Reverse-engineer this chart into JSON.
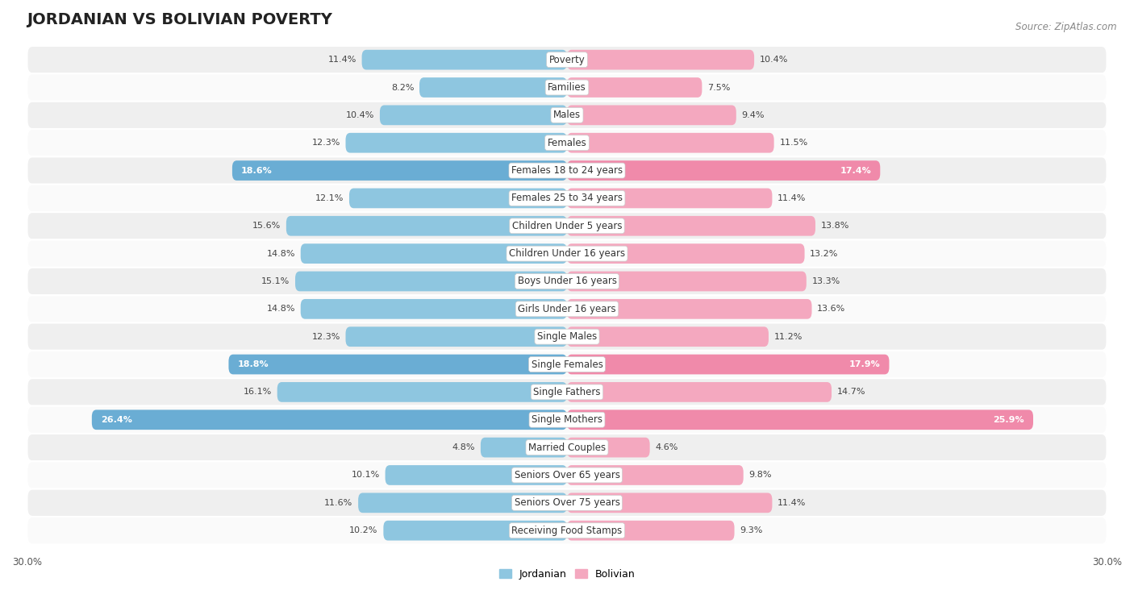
{
  "title": "JORDANIAN VS BOLIVIAN POVERTY",
  "source": "Source: ZipAtlas.com",
  "categories": [
    "Poverty",
    "Families",
    "Males",
    "Females",
    "Females 18 to 24 years",
    "Females 25 to 34 years",
    "Children Under 5 years",
    "Children Under 16 years",
    "Boys Under 16 years",
    "Girls Under 16 years",
    "Single Males",
    "Single Females",
    "Single Fathers",
    "Single Mothers",
    "Married Couples",
    "Seniors Over 65 years",
    "Seniors Over 75 years",
    "Receiving Food Stamps"
  ],
  "jordanian": [
    11.4,
    8.2,
    10.4,
    12.3,
    18.6,
    12.1,
    15.6,
    14.8,
    15.1,
    14.8,
    12.3,
    18.8,
    16.1,
    26.4,
    4.8,
    10.1,
    11.6,
    10.2
  ],
  "bolivian": [
    10.4,
    7.5,
    9.4,
    11.5,
    17.4,
    11.4,
    13.8,
    13.2,
    13.3,
    13.6,
    11.2,
    17.9,
    14.7,
    25.9,
    4.6,
    9.8,
    11.4,
    9.3
  ],
  "jordanian_color": "#8ec6e0",
  "bolivian_color": "#f4a8bf",
  "jordanian_highlight_color": "#6aadd4",
  "bolivian_highlight_color": "#f08aaa",
  "highlight_indices": [
    4,
    11,
    13
  ],
  "xlim": 30.0,
  "bar_height": 0.72,
  "row_light": "#fafafa",
  "row_dark": "#efefef",
  "title_fontsize": 14,
  "label_fontsize": 8.5,
  "value_fontsize": 8,
  "source_fontsize": 8.5,
  "legend_fontsize": 9
}
